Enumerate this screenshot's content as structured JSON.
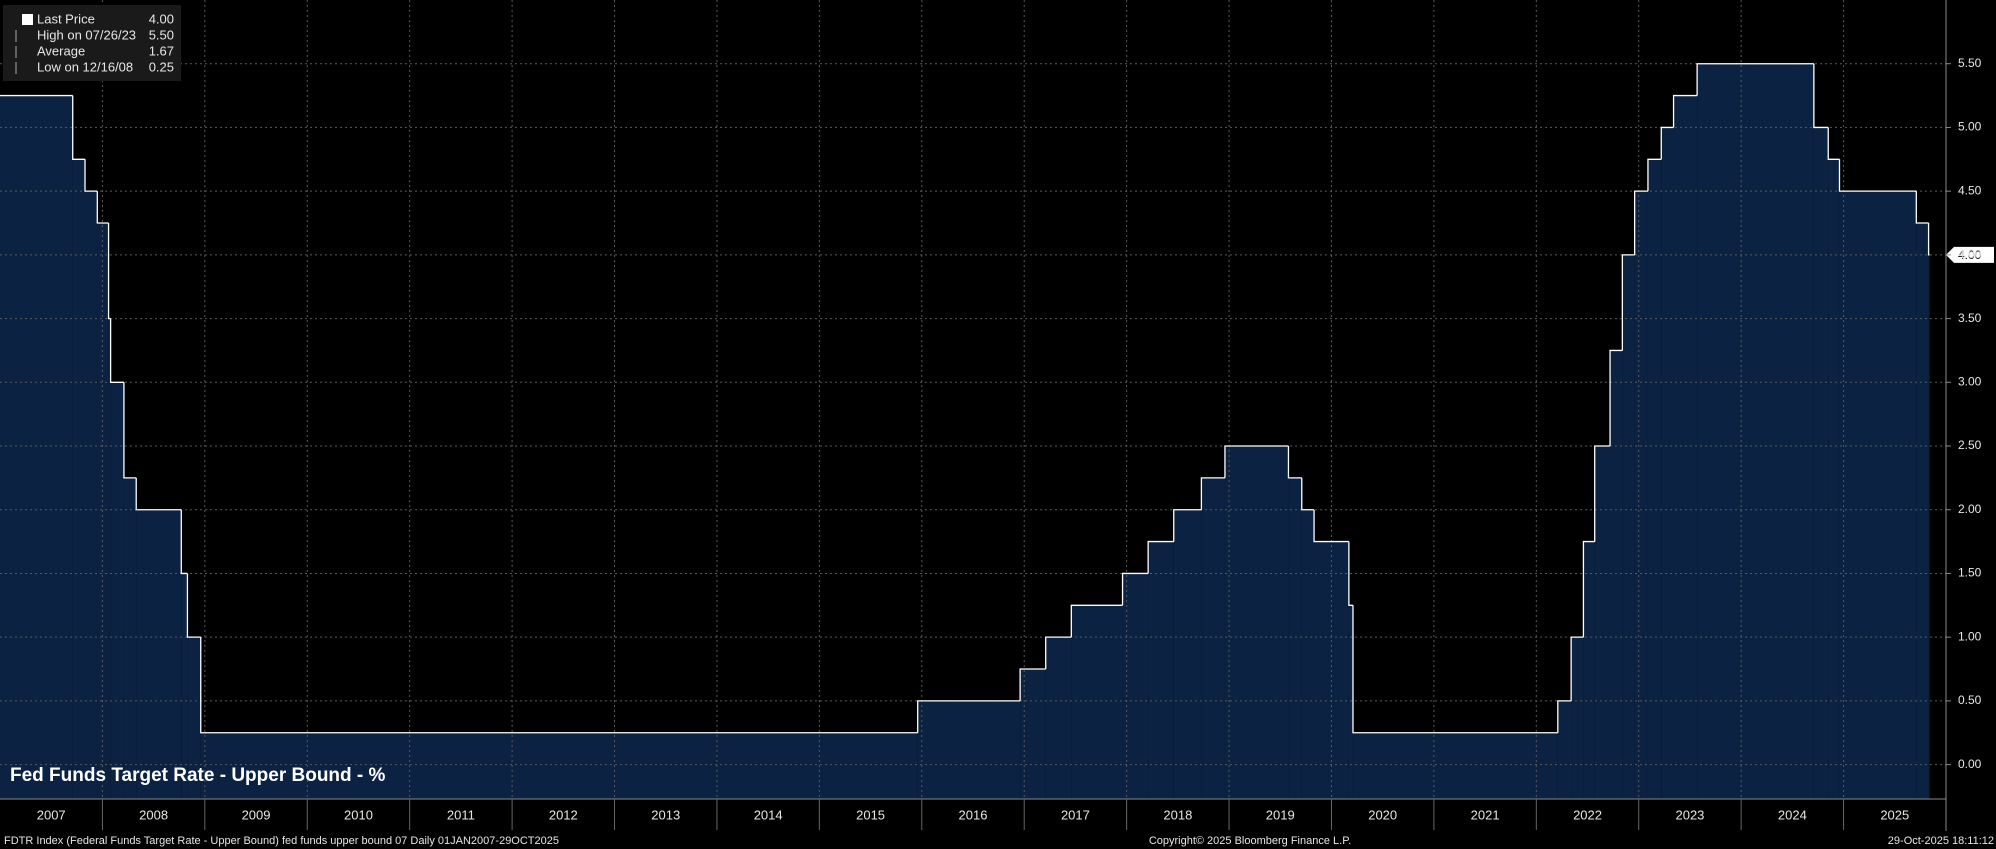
{
  "chart_data": {
    "type": "step-area",
    "title": "Fed Funds Target Rate - Upper Bound - %",
    "x": [
      2007.0,
      2007.71,
      2007.83,
      2007.95,
      2008.06,
      2008.08,
      2008.21,
      2008.33,
      2008.77,
      2008.83,
      2008.96,
      2015.96,
      2016.96,
      2017.21,
      2017.46,
      2017.96,
      2018.21,
      2018.46,
      2018.73,
      2018.96,
      2019.58,
      2019.71,
      2019.83,
      2020.17,
      2020.21,
      2022.21,
      2022.34,
      2022.46,
      2022.57,
      2022.72,
      2022.84,
      2022.96,
      2023.09,
      2023.22,
      2023.34,
      2023.57,
      2024.71,
      2024.85,
      2024.96,
      2025.71,
      2025.83
    ],
    "values": [
      5.25,
      4.75,
      4.5,
      4.25,
      3.5,
      3.0,
      2.25,
      2.0,
      1.5,
      1.0,
      0.25,
      0.5,
      0.75,
      1.0,
      1.25,
      1.5,
      1.75,
      2.0,
      2.25,
      2.5,
      2.25,
      2.0,
      1.75,
      1.25,
      0.25,
      0.5,
      1.0,
      1.75,
      2.5,
      3.25,
      4.0,
      4.5,
      4.75,
      5.0,
      5.25,
      5.5,
      5.0,
      4.75,
      4.5,
      4.25,
      4.0
    ],
    "last_value_label": "4.00",
    "color": "#0b2242",
    "line_color": "#ffffff",
    "xlim": [
      2007,
      2026
    ],
    "xgrid": [
      2008,
      2009,
      2010,
      2011,
      2012,
      2013,
      2014,
      2015,
      2016,
      2017,
      2018,
      2019,
      2020,
      2021,
      2022,
      2023,
      2024,
      2025
    ],
    "xticks": [
      {
        "value": 2007.5,
        "label": "2007"
      },
      {
        "value": 2008.5,
        "label": "2008"
      },
      {
        "value": 2009.5,
        "label": "2009"
      },
      {
        "value": 2010.5,
        "label": "2010"
      },
      {
        "value": 2011.5,
        "label": "2011"
      },
      {
        "value": 2012.5,
        "label": "2012"
      },
      {
        "value": 2013.5,
        "label": "2013"
      },
      {
        "value": 2014.5,
        "label": "2014"
      },
      {
        "value": 2015.5,
        "label": "2015"
      },
      {
        "value": 2016.5,
        "label": "2016"
      },
      {
        "value": 2017.5,
        "label": "2017"
      },
      {
        "value": 2018.5,
        "label": "2018"
      },
      {
        "value": 2019.5,
        "label": "2019"
      },
      {
        "value": 2020.5,
        "label": "2020"
      },
      {
        "value": 2021.5,
        "label": "2021"
      },
      {
        "value": 2022.5,
        "label": "2022"
      },
      {
        "value": 2023.5,
        "label": "2023"
      },
      {
        "value": 2024.5,
        "label": "2024"
      },
      {
        "value": 2025.5,
        "label": "2025"
      }
    ],
    "ylim": [
      -0.27,
      6.0
    ],
    "yticks": [
      {
        "value": 0,
        "label": "0.00"
      },
      {
        "value": 0.5,
        "label": "0.50"
      },
      {
        "value": 1,
        "label": "1.00"
      },
      {
        "value": 1.5,
        "label": "1.50"
      },
      {
        "value": 2,
        "label": "2.00"
      },
      {
        "value": 2.5,
        "label": "2.50"
      },
      {
        "value": 3,
        "label": "3.00"
      },
      {
        "value": 3.5,
        "label": "3.50"
      },
      {
        "value": 4,
        "label": "4.00"
      },
      {
        "value": 4.5,
        "label": "4.50"
      },
      {
        "value": 5,
        "label": "5.00"
      },
      {
        "value": 5.5,
        "label": "5.50"
      }
    ],
    "grid": true,
    "legend": [
      {
        "label": "Last Price",
        "value": "4.00"
      },
      {
        "label": "High on 07/26/23",
        "value": "5.50"
      },
      {
        "label": "Average",
        "value": "1.67"
      },
      {
        "label": "Low on 12/16/08",
        "value": "0.25"
      }
    ],
    "footer": {
      "left": "FDTR Index (Federal Funds Target Rate - Upper Bound) fed funds upper bound 07 Daily 01JAN2007-29OCT2025",
      "center": "Copyright© 2025 Bloomberg Finance L.P.",
      "right": "29-Oct-2025 18:11:12"
    }
  }
}
